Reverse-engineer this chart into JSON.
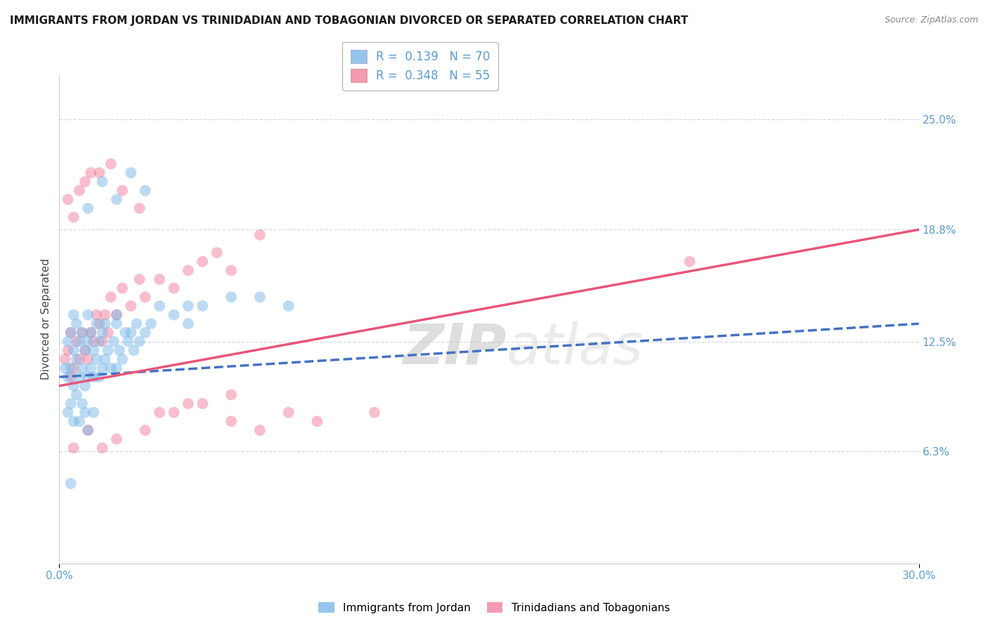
{
  "title": "IMMIGRANTS FROM JORDAN VS TRINIDADIAN AND TOBAGONIAN DIVORCED OR SEPARATED CORRELATION CHART",
  "source": "Source: ZipAtlas.com",
  "ylabel": "Divorced or Separated",
  "xlim": [
    0.0,
    30.0
  ],
  "ylim": [
    0.0,
    27.5
  ],
  "yticks": [
    6.3,
    12.5,
    18.8,
    25.0
  ],
  "ytick_labels": [
    "6.3%",
    "12.5%",
    "18.8%",
    "25.0%"
  ],
  "xtick_labels": [
    "0.0%",
    "30.0%"
  ],
  "blue_color": "#7ab8e8",
  "pink_color": "#f07090",
  "legend_r1": "R =  0.139   N = 70",
  "legend_r2": "R =  0.348   N = 55",
  "blue_scatter_x": [
    0.2,
    0.3,
    0.3,
    0.4,
    0.4,
    0.5,
    0.5,
    0.5,
    0.6,
    0.6,
    0.7,
    0.7,
    0.8,
    0.8,
    0.9,
    0.9,
    1.0,
    1.0,
    1.0,
    1.1,
    1.1,
    1.2,
    1.2,
    1.3,
    1.3,
    1.4,
    1.4,
    1.5,
    1.5,
    1.6,
    1.6,
    1.7,
    1.8,
    1.9,
    2.0,
    2.0,
    2.1,
    2.2,
    2.3,
    2.4,
    2.5,
    2.6,
    2.7,
    2.8,
    3.0,
    3.2,
    3.5,
    4.0,
    4.5,
    5.0,
    6.0,
    7.0,
    8.0,
    1.0,
    1.5,
    2.0,
    2.5,
    3.0,
    0.3,
    0.4,
    0.5,
    0.6,
    0.7,
    0.8,
    0.9,
    1.0,
    1.2,
    2.0,
    4.5,
    0.4
  ],
  "blue_scatter_y": [
    11.0,
    10.5,
    12.5,
    11.0,
    13.0,
    10.0,
    12.0,
    14.0,
    11.5,
    13.5,
    10.5,
    12.5,
    11.0,
    13.0,
    10.0,
    12.0,
    10.5,
    12.5,
    14.0,
    11.0,
    13.0,
    10.5,
    12.0,
    11.5,
    13.5,
    10.5,
    12.5,
    11.0,
    13.0,
    11.5,
    13.5,
    12.0,
    11.0,
    12.5,
    11.0,
    13.5,
    12.0,
    11.5,
    13.0,
    12.5,
    13.0,
    12.0,
    13.5,
    12.5,
    13.0,
    13.5,
    14.5,
    14.0,
    14.5,
    14.5,
    15.0,
    15.0,
    14.5,
    20.0,
    21.5,
    20.5,
    22.0,
    21.0,
    8.5,
    9.0,
    8.0,
    9.5,
    8.0,
    9.0,
    8.5,
    7.5,
    8.5,
    14.0,
    13.5,
    4.5
  ],
  "pink_scatter_x": [
    0.2,
    0.3,
    0.4,
    0.4,
    0.5,
    0.6,
    0.7,
    0.8,
    0.9,
    1.0,
    1.1,
    1.2,
    1.3,
    1.4,
    1.5,
    1.6,
    1.7,
    1.8,
    2.0,
    2.2,
    2.5,
    2.8,
    3.0,
    3.5,
    4.0,
    4.5,
    5.0,
    5.5,
    6.0,
    7.0,
    0.3,
    0.5,
    0.7,
    0.9,
    1.1,
    1.4,
    1.8,
    2.2,
    2.8,
    3.5,
    4.5,
    6.0,
    8.0,
    0.5,
    1.0,
    1.5,
    2.0,
    3.0,
    4.0,
    5.0,
    6.0,
    7.0,
    9.0,
    11.0,
    22.0
  ],
  "pink_scatter_y": [
    11.5,
    12.0,
    10.5,
    13.0,
    11.0,
    12.5,
    11.5,
    13.0,
    12.0,
    11.5,
    13.0,
    12.5,
    14.0,
    13.5,
    12.5,
    14.0,
    13.0,
    15.0,
    14.0,
    15.5,
    14.5,
    16.0,
    15.0,
    16.0,
    15.5,
    16.5,
    17.0,
    17.5,
    16.5,
    18.5,
    20.5,
    19.5,
    21.0,
    21.5,
    22.0,
    22.0,
    22.5,
    21.0,
    20.0,
    8.5,
    9.0,
    8.0,
    8.5,
    6.5,
    7.5,
    6.5,
    7.0,
    7.5,
    8.5,
    9.0,
    9.5,
    7.5,
    8.0,
    8.5,
    17.0
  ],
  "blue_line_x": [
    0.0,
    30.0
  ],
  "blue_line_y": [
    10.5,
    13.5
  ],
  "pink_line_x": [
    0.0,
    30.0
  ],
  "pink_line_y": [
    10.0,
    18.8
  ],
  "watermark_zip": "ZIP",
  "watermark_atlas": "atlas",
  "bg_color": "#ffffff",
  "grid_color": "#d0d8e8",
  "axis_label_color": "#5b9bd5",
  "title_fontsize": 11,
  "tick_fontsize": 11,
  "legend_fontsize": 12
}
